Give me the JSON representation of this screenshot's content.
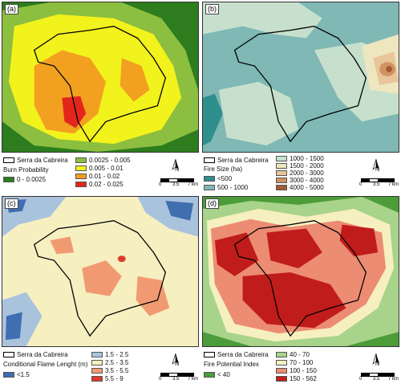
{
  "boundary_label": "Serra da Cabreira",
  "north_label": "N",
  "scale": {
    "t0": "0",
    "t1": "3.5",
    "t2": "7 km"
  },
  "colors": {
    "boundary": "#000000"
  },
  "panels": [
    {
      "id": "a",
      "label": "(a)",
      "legend_title": "Burn Probability",
      "classes": [
        {
          "label": "0 - 0.0025",
          "color": "#2d7d1e"
        },
        {
          "label": "0.0025 - 0.005",
          "color": "#8cbf3f"
        },
        {
          "label": "0.005 - 0.01",
          "color": "#f2f21c"
        },
        {
          "label": "0.01 - 0.02",
          "color": "#f2a020"
        },
        {
          "label": "0.02 - 0.025",
          "color": "#e3261c"
        }
      ]
    },
    {
      "id": "b",
      "label": "(b)",
      "legend_title": "Fire Size (ha)",
      "classes": [
        {
          "label": "<500",
          "color": "#2f8f8c"
        },
        {
          "label": "500 - 1000",
          "color": "#7fb8b4"
        },
        {
          "label": "1000 - 1500",
          "color": "#c7e0cd"
        },
        {
          "label": "1500 - 2000",
          "color": "#eee6bf"
        },
        {
          "label": "2000 - 3000",
          "color": "#e9c59a"
        },
        {
          "label": "3000 - 4000",
          "color": "#d09363"
        },
        {
          "label": "4000 - 5000",
          "color": "#a45c33"
        }
      ]
    },
    {
      "id": "c",
      "label": "(c)",
      "legend_title": "Conditional Flame Lenght (m)",
      "classes": [
        {
          "label": "<1.5",
          "color": "#3f6fb0"
        },
        {
          "label": "1.5 - 2.5",
          "color": "#a9c3dd"
        },
        {
          "label": "2.5 - 3.5",
          "color": "#f6efc0"
        },
        {
          "label": "3.5 - 5.5",
          "color": "#f19a72"
        },
        {
          "label": "5.5 - 9",
          "color": "#dd3a2d"
        }
      ]
    },
    {
      "id": "d",
      "label": "(d)",
      "legend_title": "Fire Potential Index",
      "classes": [
        {
          "label": "< 40",
          "color": "#4c9c3a"
        },
        {
          "label": "40 - 70",
          "color": "#a8d38a"
        },
        {
          "label": "70 - 100",
          "color": "#f6efc0"
        },
        {
          "label": "100 - 150",
          "color": "#ec8c72"
        },
        {
          "label": "150 - 562",
          "color": "#c11c1c"
        }
      ]
    }
  ]
}
